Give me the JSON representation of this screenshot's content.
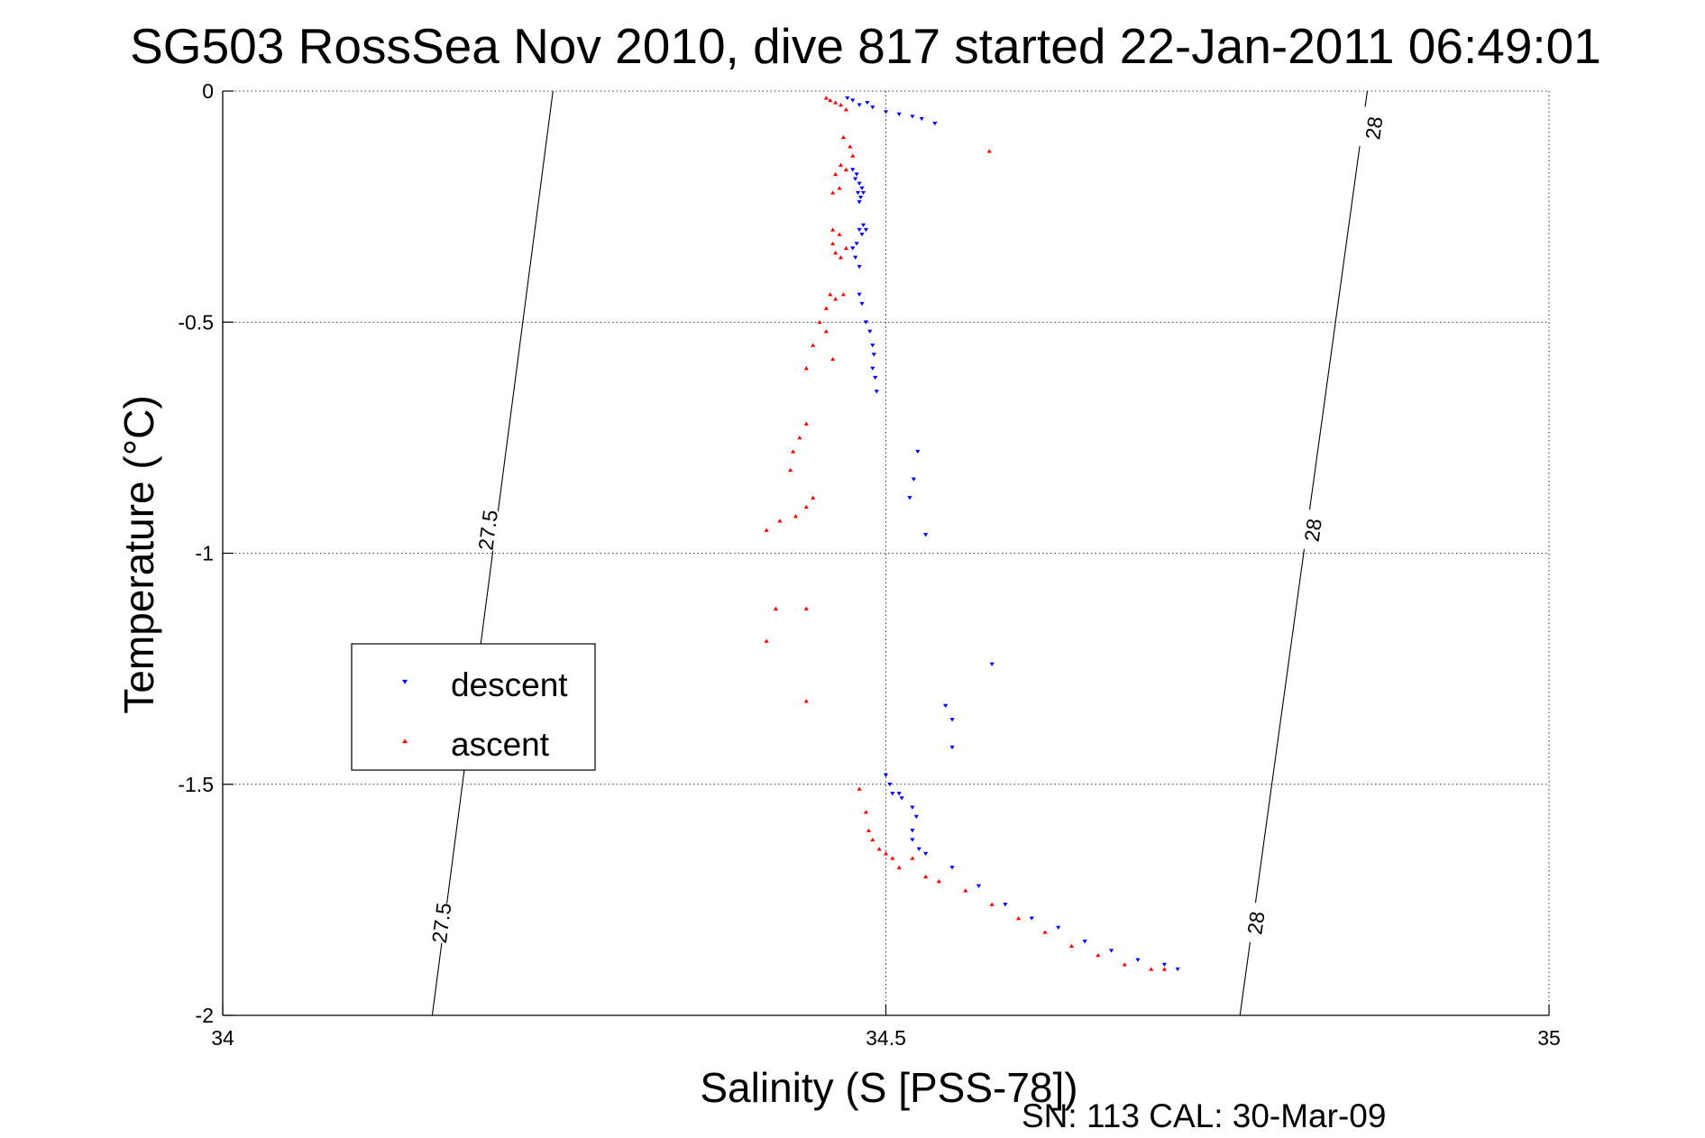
{
  "chart_data": {
    "type": "scatter",
    "title": "SG503 RossSea Nov 2010, dive 817 started 22-Jan-2011 06:49:01",
    "xlabel": "Salinity (S [PSS-78])",
    "ylabel": "Temperature (°C)",
    "xlim": [
      34,
      35
    ],
    "ylim": [
      -2,
      0
    ],
    "xticks": [
      34,
      34.5,
      35
    ],
    "xtick_labels": [
      "34",
      "34.5",
      "35"
    ],
    "yticks": [
      0,
      -0.5,
      -1,
      -1.5,
      -2
    ],
    "ytick_labels": [
      "0",
      "-0.5",
      "-1",
      "-1.5",
      "-2"
    ],
    "grid": true,
    "legend_position": "left-middle",
    "footer": "SN: 113  CAL: 30-Mar-09",
    "density_contours": [
      {
        "value": 27.5,
        "points": [
          [
            34.249,
            0
          ],
          [
            34.158,
            -2
          ]
        ],
        "labels": [
          {
            "text": "27.5",
            "x": 34.2,
            "y": -0.95
          },
          {
            "text": "27.5",
            "x": 34.165,
            "y": -1.8
          }
        ]
      },
      {
        "value": 28,
        "points": [
          [
            34.863,
            0
          ],
          [
            34.767,
            -2
          ]
        ],
        "labels": [
          {
            "text": "28",
            "x": 34.868,
            "y": -0.08
          },
          {
            "text": "28",
            "x": 34.822,
            "y": -0.95
          },
          {
            "text": "28",
            "x": 34.779,
            "y": -1.8
          }
        ]
      }
    ],
    "series": [
      {
        "name": "descent",
        "color": "#0000ff",
        "marker": "triangle-down",
        "points": [
          [
            34.471,
            -0.015
          ],
          [
            34.475,
            -0.02
          ],
          [
            34.48,
            -0.03
          ],
          [
            34.486,
            -0.025
          ],
          [
            34.49,
            -0.035
          ],
          [
            34.5,
            -0.045
          ],
          [
            34.51,
            -0.05
          ],
          [
            34.52,
            -0.055
          ],
          [
            34.527,
            -0.06
          ],
          [
            34.537,
            -0.07
          ],
          [
            34.475,
            -0.17
          ],
          [
            34.478,
            -0.18
          ],
          [
            34.48,
            -0.2
          ],
          [
            34.479,
            -0.22
          ],
          [
            34.481,
            -0.23
          ],
          [
            34.483,
            -0.22
          ],
          [
            34.48,
            -0.24
          ],
          [
            34.477,
            -0.19
          ],
          [
            34.482,
            -0.21
          ],
          [
            34.48,
            -0.3
          ],
          [
            34.482,
            -0.31
          ],
          [
            34.478,
            -0.33
          ],
          [
            34.475,
            -0.34
          ],
          [
            34.477,
            -0.36
          ],
          [
            34.483,
            -0.29
          ],
          [
            34.485,
            -0.3
          ],
          [
            34.48,
            -0.38
          ],
          [
            34.48,
            -0.44
          ],
          [
            34.482,
            -0.46
          ],
          [
            34.485,
            -0.5
          ],
          [
            34.488,
            -0.52
          ],
          [
            34.49,
            -0.55
          ],
          [
            34.491,
            -0.57
          ],
          [
            34.49,
            -0.6
          ],
          [
            34.492,
            -0.62
          ],
          [
            34.493,
            -0.65
          ],
          [
            34.524,
            -0.78
          ],
          [
            34.521,
            -0.84
          ],
          [
            34.518,
            -0.88
          ],
          [
            34.53,
            -0.96
          ],
          [
            34.58,
            -1.24
          ],
          [
            34.545,
            -1.33
          ],
          [
            34.55,
            -1.36
          ],
          [
            34.55,
            -1.42
          ],
          [
            34.5,
            -1.48
          ],
          [
            34.503,
            -1.5
          ],
          [
            34.51,
            -1.52
          ],
          [
            34.505,
            -1.52
          ],
          [
            34.512,
            -1.53
          ],
          [
            34.52,
            -1.55
          ],
          [
            34.523,
            -1.57
          ],
          [
            34.52,
            -1.6
          ],
          [
            34.52,
            -1.62
          ],
          [
            34.525,
            -1.64
          ],
          [
            34.53,
            -1.65
          ],
          [
            34.55,
            -1.68
          ],
          [
            34.57,
            -1.72
          ],
          [
            34.59,
            -1.76
          ],
          [
            34.61,
            -1.79
          ],
          [
            34.63,
            -1.81
          ],
          [
            34.65,
            -1.84
          ],
          [
            34.67,
            -1.86
          ],
          [
            34.69,
            -1.88
          ],
          [
            34.71,
            -1.89
          ],
          [
            34.72,
            -1.9
          ]
        ]
      },
      {
        "name": "ascent",
        "color": "#ff0000",
        "marker": "triangle-up",
        "points": [
          [
            34.455,
            -0.015
          ],
          [
            34.458,
            -0.02
          ],
          [
            34.462,
            -0.025
          ],
          [
            34.466,
            -0.03
          ],
          [
            34.47,
            -0.04
          ],
          [
            34.578,
            -0.13
          ],
          [
            34.468,
            -0.1
          ],
          [
            34.473,
            -0.12
          ],
          [
            34.475,
            -0.14
          ],
          [
            34.466,
            -0.16
          ],
          [
            34.47,
            -0.17
          ],
          [
            34.462,
            -0.18
          ],
          [
            34.465,
            -0.21
          ],
          [
            34.46,
            -0.22
          ],
          [
            34.46,
            -0.3
          ],
          [
            34.465,
            -0.31
          ],
          [
            34.46,
            -0.33
          ],
          [
            34.462,
            -0.35
          ],
          [
            34.466,
            -0.36
          ],
          [
            34.47,
            -0.34
          ],
          [
            34.458,
            -0.44
          ],
          [
            34.462,
            -0.45
          ],
          [
            34.468,
            -0.44
          ],
          [
            34.455,
            -0.47
          ],
          [
            34.45,
            -0.5
          ],
          [
            34.455,
            -0.52
          ],
          [
            34.445,
            -0.55
          ],
          [
            34.46,
            -0.58
          ],
          [
            34.44,
            -0.6
          ],
          [
            34.44,
            -0.72
          ],
          [
            34.435,
            -0.75
          ],
          [
            34.43,
            -0.78
          ],
          [
            34.428,
            -0.82
          ],
          [
            34.445,
            -0.88
          ],
          [
            34.44,
            -0.9
          ],
          [
            34.432,
            -0.92
          ],
          [
            34.42,
            -0.93
          ],
          [
            34.41,
            -0.95
          ],
          [
            34.417,
            -1.12
          ],
          [
            34.44,
            -1.12
          ],
          [
            34.41,
            -1.19
          ],
          [
            34.44,
            -1.32
          ],
          [
            34.48,
            -1.51
          ],
          [
            34.485,
            -1.56
          ],
          [
            34.487,
            -1.6
          ],
          [
            34.49,
            -1.62
          ],
          [
            34.495,
            -1.64
          ],
          [
            34.5,
            -1.65
          ],
          [
            34.505,
            -1.66
          ],
          [
            34.51,
            -1.68
          ],
          [
            34.52,
            -1.66
          ],
          [
            34.53,
            -1.7
          ],
          [
            34.54,
            -1.71
          ],
          [
            34.56,
            -1.73
          ],
          [
            34.58,
            -1.76
          ],
          [
            34.6,
            -1.79
          ],
          [
            34.62,
            -1.82
          ],
          [
            34.64,
            -1.85
          ],
          [
            34.66,
            -1.87
          ],
          [
            34.68,
            -1.89
          ],
          [
            34.7,
            -1.9
          ],
          [
            34.71,
            -1.9
          ]
        ]
      }
    ]
  }
}
